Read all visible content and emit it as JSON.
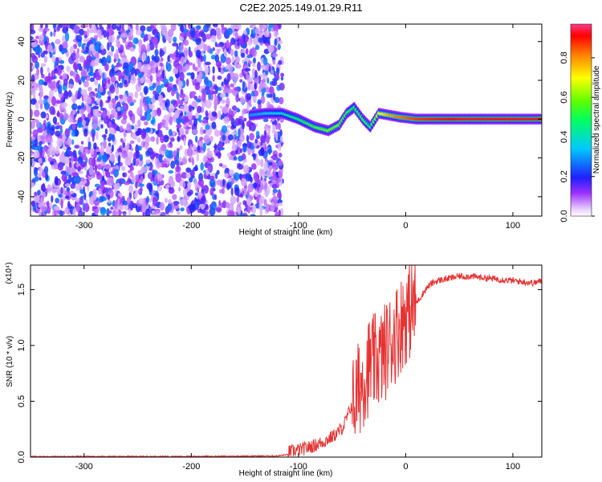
{
  "title": "C2E2.2025.149.01.29.R11",
  "chart_data": [
    {
      "type": "heatmap",
      "xlabel": "Height of straight line (km)",
      "ylabel": "Frequency (Hz)",
      "xlim": [
        -350,
        127
      ],
      "ylim": [
        -50,
        49
      ],
      "xticks": [
        "-300",
        "-200",
        "-100",
        "0",
        "100"
      ],
      "xtick_values": [
        -300,
        -200,
        -100,
        0,
        100
      ],
      "yticks": [
        "-40",
        "-20",
        "0",
        "20",
        "40"
      ],
      "ytick_values": [
        -40,
        -20,
        0,
        20,
        40
      ],
      "colorbar": {
        "label": "Normalized spectral amplitude",
        "range": [
          0,
          0.97
        ],
        "ticks": [
          "0.0",
          "0.2",
          "0.4",
          "0.6",
          "0.8"
        ],
        "tick_values": [
          0,
          0.2,
          0.4,
          0.6,
          0.8
        ]
      },
      "noise_region": {
        "x_range": [
          -350,
          -115
        ],
        "amplitude": [
          0.05,
          0.3
        ]
      },
      "signal_track": [
        {
          "x": -145,
          "y": 2,
          "amplitude": 0.3
        },
        {
          "x": -130,
          "y": 3,
          "amplitude": 0.35
        },
        {
          "x": -115,
          "y": 3,
          "amplitude": 0.4
        },
        {
          "x": -100,
          "y": 0,
          "amplitude": 0.5
        },
        {
          "x": -85,
          "y": -4,
          "amplitude": 0.55
        },
        {
          "x": -72,
          "y": -6,
          "amplitude": 0.6
        },
        {
          "x": -62,
          "y": -3,
          "amplitude": 0.6
        },
        {
          "x": -55,
          "y": 3,
          "amplitude": 0.55
        },
        {
          "x": -48,
          "y": 6,
          "amplitude": 0.5
        },
        {
          "x": -40,
          "y": 0,
          "amplitude": 0.55
        },
        {
          "x": -33,
          "y": -4,
          "amplitude": 0.5
        },
        {
          "x": -25,
          "y": 3,
          "amplitude": 0.7
        },
        {
          "x": -15,
          "y": 2,
          "amplitude": 0.8
        },
        {
          "x": -5,
          "y": 1,
          "amplitude": 0.85
        },
        {
          "x": 10,
          "y": 0,
          "amplitude": 0.9
        },
        {
          "x": 50,
          "y": 0,
          "amplitude": 0.95
        },
        {
          "x": 127,
          "y": 0,
          "amplitude": 0.95
        }
      ]
    },
    {
      "type": "line",
      "xlabel": "Height of straight line (km)",
      "ylabel": "SNR (10 * v/v)",
      "y_multiplier": "(x10⁴)",
      "xlim": [
        -350,
        127
      ],
      "ylim": [
        0,
        1.72
      ],
      "xticks": [
        "-300",
        "-200",
        "-100",
        "0",
        "100"
      ],
      "xtick_values": [
        -300,
        -200,
        -100,
        0,
        100
      ],
      "yticks": [
        "0.0",
        "0.5",
        "1.0",
        "1.5"
      ],
      "ytick_values": [
        0,
        0.5,
        1.0,
        1.5
      ],
      "color": "#e63232",
      "series": [
        {
          "x": [
            -350,
            -300,
            -200,
            -120,
            -105,
            -95,
            -85,
            -75,
            -65,
            -58,
            -52,
            -46,
            -40,
            -34,
            -28,
            -22,
            -16,
            -10,
            -4,
            0,
            5,
            10,
            15,
            20,
            25,
            30,
            40,
            50,
            60,
            70,
            80,
            90,
            100,
            110,
            120,
            127
          ],
          "y": [
            0.005,
            0.005,
            0.006,
            0.01,
            0.03,
            0.05,
            0.08,
            0.12,
            0.18,
            0.25,
            0.4,
            0.55,
            0.7,
            0.82,
            0.85,
            0.9,
            1.0,
            1.1,
            1.2,
            1.28,
            1.33,
            1.38,
            1.45,
            1.52,
            1.56,
            1.58,
            1.6,
            1.62,
            1.62,
            1.61,
            1.6,
            1.59,
            1.58,
            1.57,
            1.56,
            1.58
          ]
        }
      ]
    }
  ]
}
